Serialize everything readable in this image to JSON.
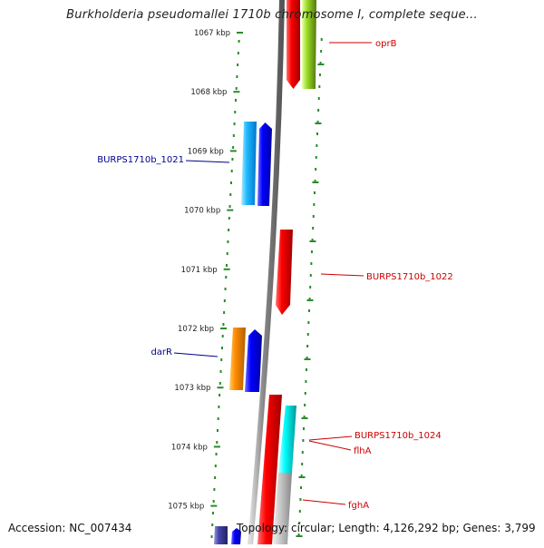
{
  "title": "Burkholderia pseudomallei 1710b chromosome I, complete seque...",
  "footer": {
    "accession": "Accession: NC_007434",
    "summary": "Topology: circular; Length: 4,126,292 bp; Genes: 3,799"
  },
  "colors": {
    "ruler": "#2a8a2a",
    "backbone": "#8a8a8a",
    "reverse_label": "#00008b",
    "forward_label": "#cc0000"
  },
  "ruler_labels": [
    "1067 kbp",
    "1068 kbp",
    "1069 kbp",
    "1070 kbp",
    "1071 kbp",
    "1072 kbp",
    "1073 kbp",
    "1074 kbp",
    "1075 kbp"
  ],
  "gene_labels": [
    {
      "text": "oprB",
      "strand": "forward"
    },
    {
      "text": "BURPS1710b_1021",
      "strand": "reverse"
    },
    {
      "text": "BURPS1710b_1022",
      "strand": "forward"
    },
    {
      "text": "darR",
      "strand": "reverse"
    },
    {
      "text": "BURPS1710b_1024",
      "strand": "forward"
    },
    {
      "text": "flhA",
      "strand": "forward"
    },
    {
      "text": "fghA",
      "strand": "forward"
    }
  ]
}
